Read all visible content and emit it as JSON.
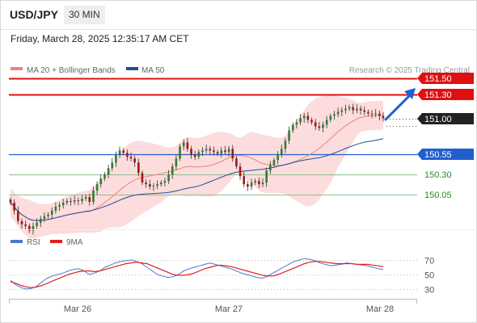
{
  "header": {
    "symbol": "USD/JPY",
    "timeframe": "30 MIN",
    "datetime": "Friday, March 28, 2025 12:35:17 AM CET"
  },
  "legend": {
    "ma20_label": "MA 20 + Bollinger Bands",
    "ma50_label": "MA 50",
    "ma20_color": "#f08080",
    "ma50_color": "#1f4e9c",
    "credit": "Research © 2025 Trading Central"
  },
  "rsi_legend": {
    "rsi_label": "RSI",
    "ma_label": "9MA",
    "rsi_color": "#4a78d0",
    "ma_color": "#e02020"
  },
  "levels": [
    {
      "value": "151.50",
      "type": "resistance",
      "color": "#e01010"
    },
    {
      "value": "151.30",
      "type": "resistance",
      "color": "#e01010"
    },
    {
      "value": "151.00",
      "type": "current",
      "color": "#222222"
    },
    {
      "value": "150.55",
      "type": "support",
      "color": "#1f5fd0"
    },
    {
      "value": "150.30",
      "type": "support",
      "color": "#2a8a2a"
    },
    {
      "value": "150.05",
      "type": "support",
      "color": "#2a8a2a"
    }
  ],
  "rsi_axis": [
    "70",
    "50",
    "30"
  ],
  "x_labels": [
    "Mar 26",
    "Mar 27",
    "Mar 28"
  ],
  "chart_data": [
    {
      "type": "candlestick",
      "title": "USD/JPY 30 MIN",
      "xlabel": "",
      "ylabel": "",
      "x_ticks": [
        "Mar 26",
        "Mar 27",
        "Mar 28"
      ],
      "ylim": [
        149.55,
        151.62
      ],
      "grid": false,
      "series": [
        {
          "name": "USD/JPY",
          "close": [
            149.95,
            149.85,
            149.72,
            149.68,
            149.66,
            149.6,
            149.66,
            149.7,
            149.75,
            149.78,
            149.8,
            149.85,
            149.9,
            149.92,
            149.95,
            149.97,
            149.96,
            149.98,
            149.97,
            150.0,
            150.02,
            149.96,
            150.1,
            150.18,
            150.25,
            150.3,
            150.38,
            150.45,
            150.55,
            150.6,
            150.57,
            150.52,
            150.5,
            150.45,
            150.32,
            150.2,
            150.18,
            150.15,
            150.16,
            150.18,
            150.2,
            150.22,
            150.3,
            150.4,
            150.5,
            150.65,
            150.7,
            150.62,
            150.55,
            150.52,
            150.58,
            150.6,
            150.62,
            150.6,
            150.58,
            150.56,
            150.6,
            150.58,
            150.62,
            150.5,
            150.4,
            150.28,
            150.18,
            150.15,
            150.2,
            150.22,
            150.18,
            150.2,
            150.35,
            150.42,
            150.48,
            150.55,
            150.62,
            150.72,
            150.85,
            150.92,
            150.95,
            151.0,
            151.03,
            150.98,
            150.95,
            150.9,
            150.88,
            150.92,
            150.98,
            151.03,
            151.05,
            151.08,
            151.1,
            151.12,
            151.14,
            151.1,
            151.12,
            151.1,
            151.08,
            151.06,
            151.05,
            151.06,
            151.03,
            151.0
          ]
        }
      ],
      "overlays": [
        {
          "name": "MA 20 + Bollinger Bands",
          "type": "ma20+bb",
          "period": 20
        },
        {
          "name": "MA 50",
          "type": "ma50",
          "period": 50
        }
      ],
      "horizontal_levels": [
        151.5,
        151.3,
        151.0,
        150.55,
        150.3,
        150.05
      ],
      "arrow": {
        "from_price": 151.0,
        "to_price": 151.5,
        "direction": "up"
      }
    },
    {
      "type": "line",
      "title": "RSI",
      "xlabel": "",
      "ylabel": "",
      "y_ticks": [
        70,
        50,
        30
      ],
      "ylim": [
        20,
        80
      ],
      "grid": false,
      "series": [
        {
          "name": "RSI",
          "values": [
            42,
            36,
            32,
            30,
            31,
            34,
            40,
            45,
            48,
            50,
            52,
            55,
            57,
            58,
            55,
            50,
            52,
            55,
            60,
            63,
            66,
            68,
            69,
            70,
            68,
            65,
            60,
            55,
            50,
            48,
            46,
            47,
            50,
            55,
            58,
            60,
            62,
            64,
            66,
            64,
            62,
            60,
            58,
            55,
            52,
            50,
            48,
            46,
            45,
            48,
            52,
            56,
            60,
            64,
            68,
            70,
            72,
            71,
            69,
            66,
            64,
            62,
            63,
            64,
            66,
            65,
            64,
            63,
            62,
            60,
            58,
            57
          ]
        },
        {
          "name": "9MA",
          "values": [
            40,
            38,
            35,
            33,
            32,
            33,
            35,
            38,
            41,
            44,
            47,
            50,
            52,
            54,
            55,
            55,
            54,
            55,
            57,
            59,
            61,
            63,
            65,
            66,
            67,
            66,
            65,
            62,
            59,
            56,
            53,
            50,
            49,
            49,
            50,
            52,
            55,
            58,
            60,
            62,
            63,
            62,
            61,
            59,
            57,
            55,
            53,
            51,
            49,
            48,
            48,
            50,
            53,
            56,
            59,
            62,
            65,
            67,
            68,
            68,
            67,
            66,
            65,
            65,
            65,
            65,
            64,
            64,
            64,
            63,
            62,
            61
          ]
        }
      ]
    }
  ]
}
